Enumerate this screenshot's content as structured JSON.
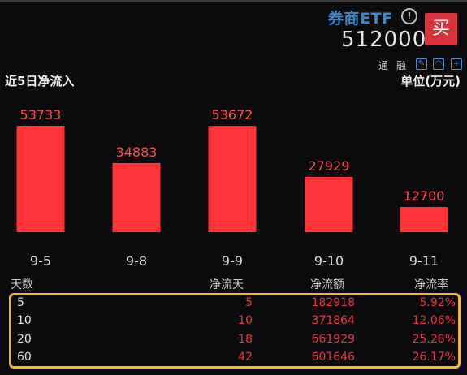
{
  "header": {
    "fund_name": "券商ETF",
    "info_icon": "!",
    "fund_code": "512000",
    "buy_label": "买",
    "tags": [
      "通",
      "融"
    ],
    "toolbar_icons": [
      "edit-icon",
      "bell-icon",
      "add-icon"
    ]
  },
  "section": {
    "title": "近5日净流入",
    "unit": "单位(万元)"
  },
  "colors": {
    "bar": "#ff3338",
    "label": "#ff4a4f",
    "accent_border": "#f0b82a",
    "brand": "#3d86c6"
  },
  "chart_data": {
    "type": "bar",
    "categories": [
      "9-5",
      "9-8",
      "9-9",
      "9-10",
      "9-11"
    ],
    "values": [
      53733,
      34883,
      53672,
      27929,
      12700
    ],
    "title": "近5日净流入",
    "ylabel": "单位(万元)",
    "grid": false
  },
  "table": {
    "headers": [
      "天数",
      "净流天",
      "净流额",
      "净流率"
    ],
    "rows": [
      {
        "days": "5",
        "net_days": "5",
        "net_amount": "182918",
        "net_rate": "5.92%"
      },
      {
        "days": "10",
        "net_days": "10",
        "net_amount": "371864",
        "net_rate": "12.06%"
      },
      {
        "days": "20",
        "net_days": "18",
        "net_amount": "661929",
        "net_rate": "25.28%"
      },
      {
        "days": "60",
        "net_days": "42",
        "net_amount": "601646",
        "net_rate": "26.17%"
      }
    ]
  }
}
